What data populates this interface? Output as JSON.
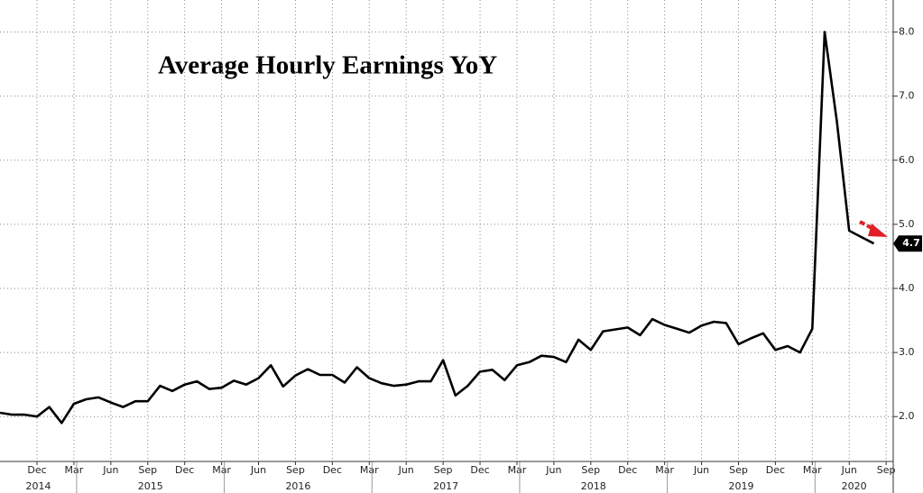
{
  "chart_data": {
    "type": "line",
    "title": "Average Hourly Earnings YoY",
    "x": [
      "2014-09",
      "2014-10",
      "2014-11",
      "2014-12",
      "2015-01",
      "2015-02",
      "2015-03",
      "2015-04",
      "2015-05",
      "2015-06",
      "2015-07",
      "2015-08",
      "2015-09",
      "2015-10",
      "2015-11",
      "2015-12",
      "2016-01",
      "2016-02",
      "2016-03",
      "2016-04",
      "2016-05",
      "2016-06",
      "2016-07",
      "2016-08",
      "2016-09",
      "2016-10",
      "2016-11",
      "2016-12",
      "2017-01",
      "2017-02",
      "2017-03",
      "2017-04",
      "2017-05",
      "2017-06",
      "2017-07",
      "2017-08",
      "2017-09",
      "2017-10",
      "2017-11",
      "2017-12",
      "2018-01",
      "2018-02",
      "2018-03",
      "2018-04",
      "2018-05",
      "2018-06",
      "2018-07",
      "2018-08",
      "2018-09",
      "2018-10",
      "2018-11",
      "2018-12",
      "2019-01",
      "2019-02",
      "2019-03",
      "2019-04",
      "2019-05",
      "2019-06",
      "2019-07",
      "2019-08",
      "2019-09",
      "2019-10",
      "2019-11",
      "2019-12",
      "2020-01",
      "2020-02",
      "2020-03",
      "2020-04",
      "2020-05",
      "2020-06",
      "2020-07",
      "2020-08"
    ],
    "series": [
      {
        "name": "Average Hourly Earnings YoY",
        "color": "#000000",
        "values": [
          2.06,
          2.03,
          2.03,
          2.0,
          2.15,
          1.9,
          2.2,
          2.27,
          2.3,
          2.22,
          2.15,
          2.24,
          2.24,
          2.48,
          2.4,
          2.5,
          2.55,
          2.43,
          2.45,
          2.56,
          2.5,
          2.6,
          2.8,
          2.47,
          2.64,
          2.74,
          2.65,
          2.65,
          2.53,
          2.77,
          2.6,
          2.52,
          2.48,
          2.5,
          2.55,
          2.55,
          2.88,
          2.33,
          2.48,
          2.7,
          2.73,
          2.57,
          2.8,
          2.85,
          2.95,
          2.93,
          2.85,
          3.2,
          3.04,
          3.33,
          3.36,
          3.39,
          3.27,
          3.52,
          3.43,
          3.37,
          3.31,
          3.42,
          3.48,
          3.46,
          3.13,
          3.22,
          3.3,
          3.04,
          3.1,
          3.0,
          3.37,
          8.0,
          6.6,
          4.9,
          4.8,
          4.7
        ]
      }
    ],
    "last_value_label": "4.7",
    "ylim": [
      1.3,
      8.5
    ],
    "yticks": [
      {
        "value": 2,
        "label": "2.0"
      },
      {
        "value": 3,
        "label": "3.0"
      },
      {
        "value": 4,
        "label": "4.0"
      },
      {
        "value": 5,
        "label": "5.0"
      },
      {
        "value": 6,
        "label": "6.0"
      },
      {
        "value": 7,
        "label": "7.0"
      },
      {
        "value": 8,
        "label": "8.0"
      }
    ],
    "xticks": [
      {
        "value": "2014-12",
        "label": "Dec"
      },
      {
        "value": "2015-03",
        "label": "Mar"
      },
      {
        "value": "2015-06",
        "label": "Jun"
      },
      {
        "value": "2015-09",
        "label": "Sep"
      },
      {
        "value": "2015-12",
        "label": "Dec"
      },
      {
        "value": "2016-03",
        "label": "Mar"
      },
      {
        "value": "2016-06",
        "label": "Jun"
      },
      {
        "value": "2016-09",
        "label": "Sep"
      },
      {
        "value": "2016-12",
        "label": "Dec"
      },
      {
        "value": "2017-03",
        "label": "Mar"
      },
      {
        "value": "2017-06",
        "label": "Jun"
      },
      {
        "value": "2017-09",
        "label": "Sep"
      },
      {
        "value": "2017-12",
        "label": "Dec"
      },
      {
        "value": "2018-03",
        "label": "Mar"
      },
      {
        "value": "2018-06",
        "label": "Jun"
      },
      {
        "value": "2018-09",
        "label": "Sep"
      },
      {
        "value": "2018-12",
        "label": "Dec"
      },
      {
        "value": "2019-03",
        "label": "Mar"
      },
      {
        "value": "2019-06",
        "label": "Jun"
      },
      {
        "value": "2019-09",
        "label": "Sep"
      },
      {
        "value": "2019-12",
        "label": "Dec"
      },
      {
        "value": "2020-03",
        "label": "Mar"
      },
      {
        "value": "2020-06",
        "label": "Jun"
      },
      {
        "value": "2020-09",
        "label": "Sep"
      }
    ],
    "years": [
      "2014",
      "2015",
      "2016",
      "2017",
      "2018",
      "2019",
      "2020"
    ],
    "grid": true
  }
}
